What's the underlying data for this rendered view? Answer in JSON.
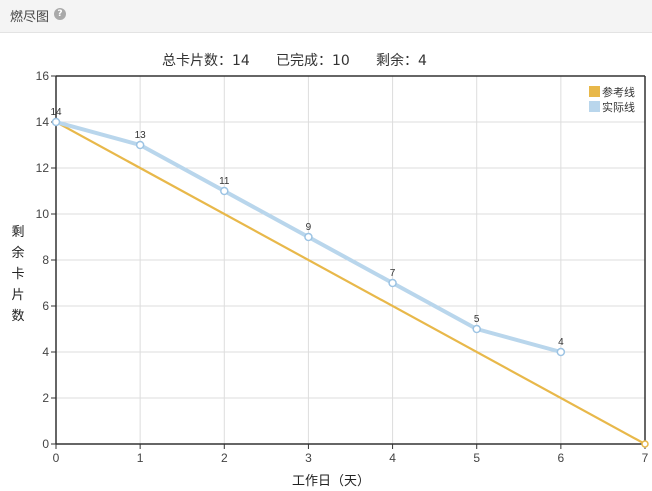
{
  "panel": {
    "title": "燃尽图",
    "help_icon": "question-circle-icon"
  },
  "stats": {
    "total_label": "总卡片数：14",
    "done_label": "已完成：10",
    "remaining_label": "剩余：4"
  },
  "colors": {
    "reference_line": "#e8b84a",
    "actual_line": "#b9d6ec",
    "actual_marker_stroke": "#9cc3e3",
    "grid": "#dddddd",
    "axis": "#333333"
  },
  "chart_data": {
    "type": "line",
    "xlabel": "工作日（天）",
    "ylabel": "剩余卡片数",
    "xlim": [
      0,
      7
    ],
    "ylim": [
      0,
      16
    ],
    "x_ticks": [
      0,
      1,
      2,
      3,
      4,
      5,
      6,
      7
    ],
    "y_ticks": [
      0,
      2,
      4,
      6,
      8,
      10,
      12,
      14,
      16
    ],
    "grid": true,
    "legend_position": "top-right",
    "series": [
      {
        "name": "参考线",
        "x": [
          0,
          7
        ],
        "y": [
          14,
          0
        ]
      },
      {
        "name": "实际线",
        "x": [
          0,
          1,
          2,
          3,
          4,
          5,
          6
        ],
        "y": [
          14,
          13,
          11,
          9,
          7,
          5,
          4
        ],
        "data_labels": [
          "14",
          "13",
          "11",
          "9",
          "7",
          "5",
          "4"
        ]
      }
    ]
  }
}
